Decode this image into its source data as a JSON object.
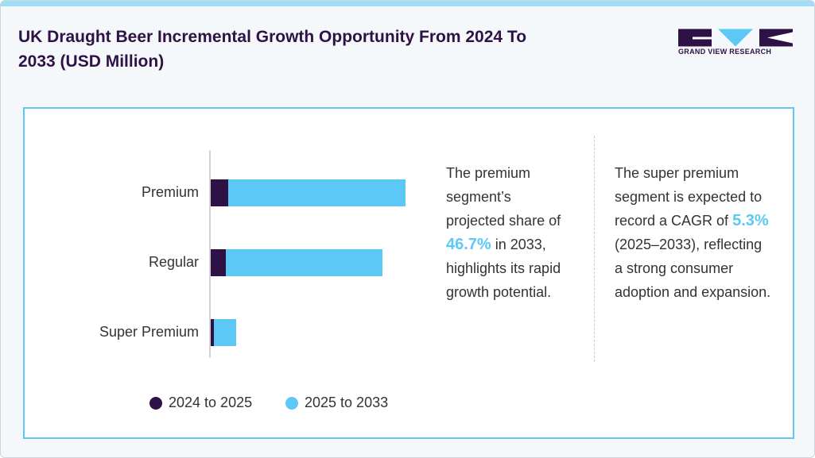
{
  "header": {
    "title": "UK Draught Beer Incremental Growth Opportunity From 2024 To 2033 (USD Million)",
    "logo": "GRAND VIEW RESEARCH"
  },
  "chart_data": {
    "type": "bar",
    "orientation": "horizontal",
    "stacked": true,
    "categories": [
      "Premium",
      "Regular",
      "Super Premium"
    ],
    "series": [
      {
        "name": "2024 to 2025",
        "color": "#2e1245",
        "values": [
          22,
          19,
          4
        ]
      },
      {
        "name": "2025 to 2033",
        "color": "#5bc8f5",
        "values": [
          223,
          197,
          28
        ]
      }
    ],
    "xlim": [
      0,
      300
    ],
    "legend": "bottom"
  },
  "notes": [
    {
      "before": "The premium segment’s projected share of",
      "highlight": "46.7%",
      "after": "in 2033, highlights its rapid growth potential."
    },
    {
      "before": "The super premium segment is expected to record a CAGR of",
      "highlight": "5.3%",
      "after": "(2025–2033), reflecting a strong consumer adoption and expansion."
    }
  ]
}
